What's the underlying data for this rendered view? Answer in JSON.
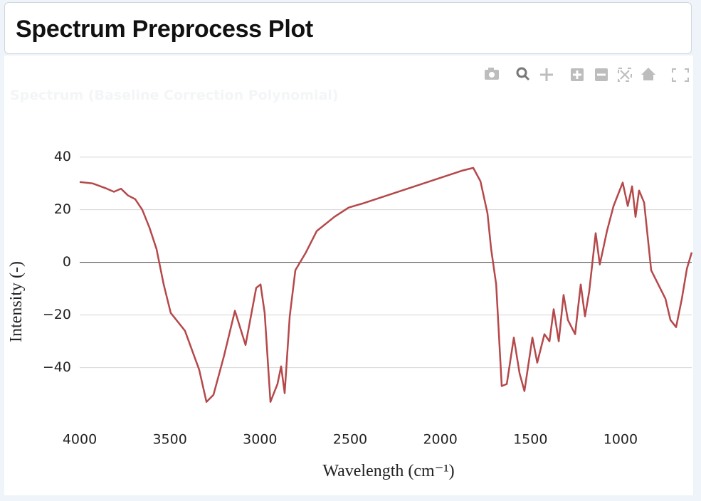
{
  "header": {
    "title": "Spectrum Preprocess Plot"
  },
  "chart_data": {
    "type": "line",
    "title": "Spectrum (Baseline Correction Polynomial)",
    "x_label": "Wavelength (cm⁻¹)",
    "y_label": "Intensity (-)",
    "color": "#b5484a",
    "x": [
      4000,
      3929,
      3850,
      3810,
      3771,
      3732,
      3692,
      3653,
      3613,
      3574,
      3534,
      3495,
      3416,
      3337,
      3297,
      3258,
      3199,
      3139,
      3080,
      3021,
      2997,
      2974,
      2942,
      2903,
      2883,
      2863,
      2835,
      2804,
      2745,
      2685,
      2587,
      2508,
      2429,
      1876,
      1817,
      1777,
      1738,
      1718,
      1690,
      1659,
      1631,
      1592,
      1560,
      1533,
      1489,
      1462,
      1422,
      1394,
      1371,
      1343,
      1316,
      1292,
      1252,
      1221,
      1197,
      1174,
      1138,
      1115,
      1075,
      1039,
      988,
      960,
      936,
      917,
      897,
      869,
      830,
      751,
      723,
      692,
      660,
      632,
      605
    ],
    "values": [
      30.5,
      30,
      28,
      26.8,
      28,
      25.4,
      24,
      20,
      13.2,
      5.1,
      -8.4,
      -19.2,
      -26,
      -40.8,
      -53,
      -50.3,
      -35.4,
      -18.4,
      -31.4,
      -9.7,
      -8.4,
      -19.2,
      -53,
      -46.2,
      -39.5,
      -49.7,
      -20.5,
      -3,
      3.8,
      11.9,
      17.3,
      20.8,
      22.4,
      34.9,
      35.9,
      30.8,
      18.6,
      5.1,
      -8.4,
      -47,
      -46.2,
      -28.6,
      -42.2,
      -48.9,
      -28.6,
      -38.1,
      -27.3,
      -30,
      -17.8,
      -30,
      -12.4,
      -21.9,
      -27.3,
      -8.4,
      -20.5,
      -11.1,
      11.1,
      -0.8,
      11.9,
      21.4,
      30.3,
      21.4,
      28.9,
      17.3,
      27.3,
      22.7,
      -3,
      -13.8,
      -21.9,
      -24.6,
      -13.8,
      -2.4,
      3.8
    ],
    "xlim": [
      4000,
      605
    ],
    "ylim": [
      -62,
      51
    ],
    "xticks": [
      4000,
      3500,
      3000,
      2500,
      2000,
      1500,
      1000
    ],
    "yticks": [
      {
        "value": -40,
        "label": "−40"
      },
      {
        "value": -20,
        "label": "−20"
      },
      0,
      20,
      40
    ],
    "grid": true
  }
}
